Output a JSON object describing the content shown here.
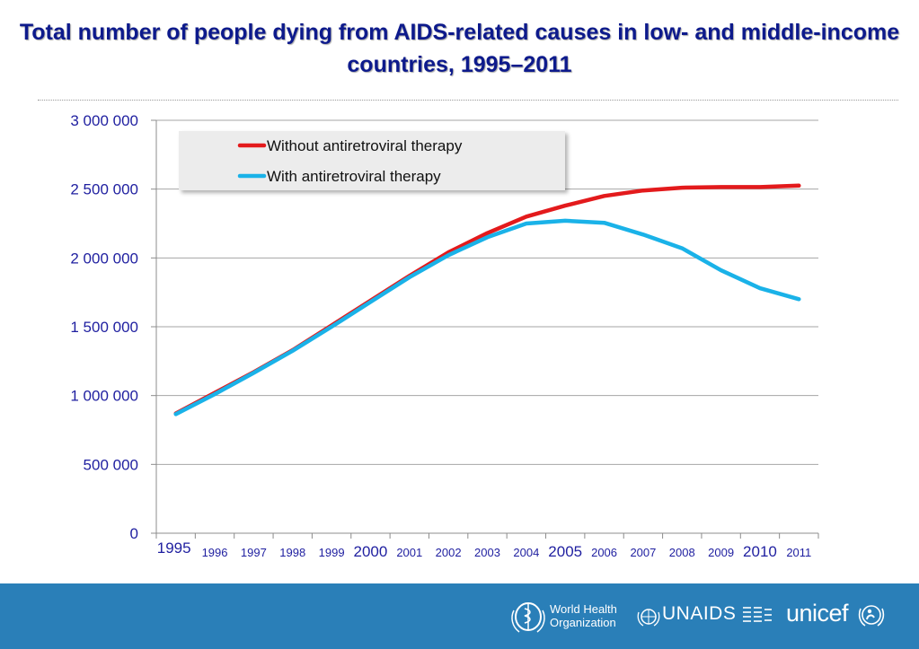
{
  "title": "Total number of people dying from AIDS-related causes in low- and middle-income countries, 1995–2011",
  "chart_data": {
    "type": "line",
    "x": [
      1995,
      1996,
      1997,
      1998,
      1999,
      2000,
      2001,
      2002,
      2003,
      2004,
      2005,
      2006,
      2007,
      2008,
      2009,
      2010,
      2011
    ],
    "x_tick_labels": [
      "1995",
      "1996",
      "1997",
      "1998",
      "1999",
      "2000",
      "2001",
      "2002",
      "2003",
      "2004",
      "2005",
      "2006",
      "2007",
      "2008",
      "2009",
      "2010",
      "2011"
    ],
    "emphasized_ticks": [
      "1995",
      "2000",
      "2005",
      "2010"
    ],
    "y_tick_labels": [
      "0",
      "500 000",
      "1 000 000",
      "1 500 000",
      "2 000 000",
      "2 500 000",
      "3 000 000"
    ],
    "ylim": [
      0,
      3000000
    ],
    "grid": true,
    "legend_position": "top-left",
    "series": [
      {
        "name": "Without antiretroviral therapy",
        "color": "#e31a1c",
        "values": [
          870000,
          1020000,
          1170000,
          1330000,
          1510000,
          1690000,
          1870000,
          2040000,
          2180000,
          2300000,
          2380000,
          2450000,
          2490000,
          2510000,
          2515000,
          2515000,
          2525000
        ]
      },
      {
        "name": "With antiretroviral therapy",
        "color": "#1ab2e8",
        "values": [
          865000,
          1010000,
          1165000,
          1325000,
          1500000,
          1680000,
          1860000,
          2020000,
          2150000,
          2250000,
          2270000,
          2255000,
          2170000,
          2070000,
          1910000,
          1780000,
          1700000
        ]
      }
    ]
  },
  "footer": {
    "background": "#2a7fb8",
    "who_line1": "World Health",
    "who_line2": "Organization",
    "unaids_label": "UNAIDS",
    "unicef_label": "unicef"
  }
}
